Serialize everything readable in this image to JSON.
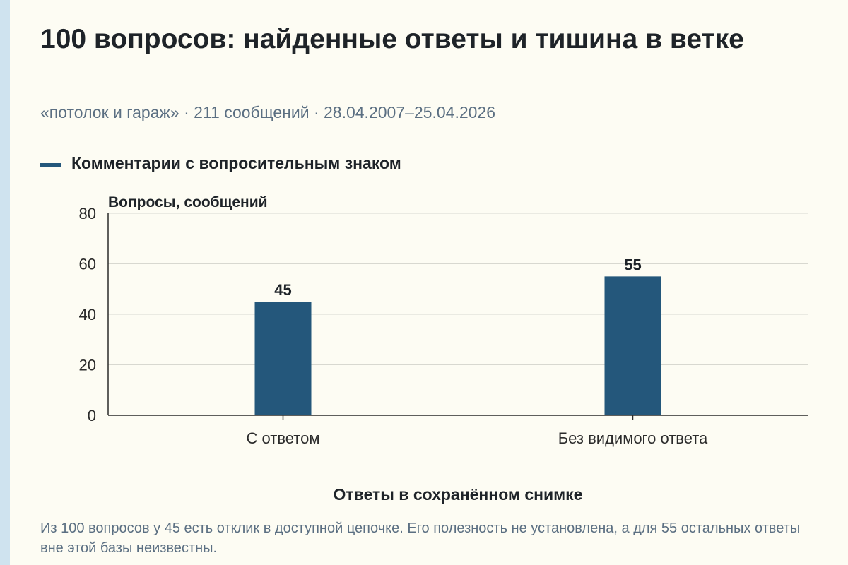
{
  "page": {
    "title": "100 вопросов: найденные ответы и тишина в ветке",
    "subtitle": "«потолок и гараж» · 211 сообщений · 28.04.2007–25.04.2026",
    "caption": "Из 100 вопросов у 45 есть отклик в доступной цепочке. Его полезность не установлена, а для 55 остальных ответы вне этой базы неизвестны."
  },
  "chart_data": {
    "type": "bar",
    "title": "",
    "xlabel": "Ответы в сохранённом снимке",
    "ylabel": "Вопросы, сообщений",
    "categories": [
      "С ответом",
      "Без видимого ответа"
    ],
    "series": [
      {
        "name": "Комментарии с вопросительным знаком",
        "values": [
          45,
          55
        ],
        "color": "#24577b"
      }
    ],
    "data_labels": [
      "45",
      "55"
    ],
    "ylim": [
      0,
      80
    ],
    "yticks": [
      0,
      20,
      40,
      60,
      80
    ],
    "grid": true,
    "legend_position": "top-left"
  }
}
